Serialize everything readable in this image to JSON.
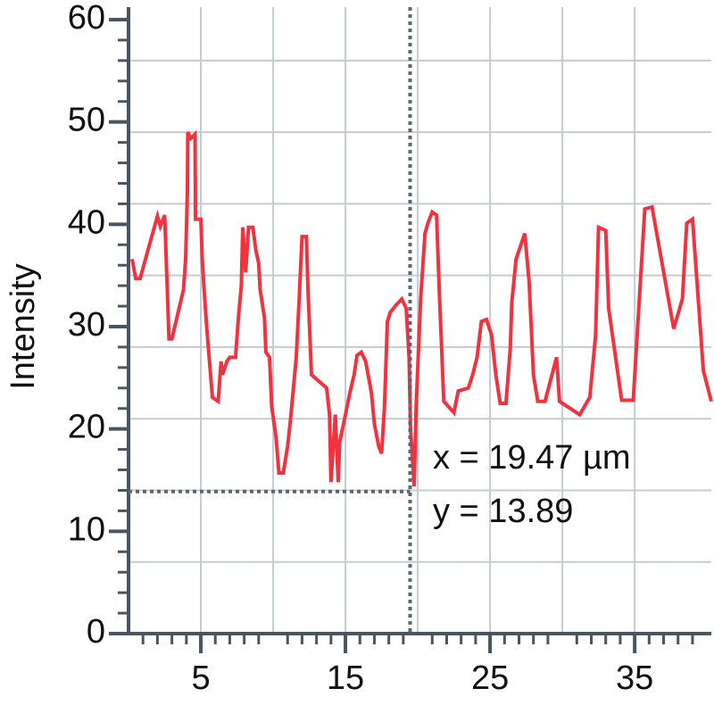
{
  "chart_data": {
    "type": "line",
    "y_label": "Intensity",
    "x": [
      0.25,
      0.5,
      0.8,
      2.0,
      2.2,
      2.5,
      2.8,
      3.0,
      3.8,
      3.95,
      4.07,
      4.1,
      4.3,
      4.6,
      4.63,
      5.0,
      5.1,
      5.25,
      5.4,
      5.6,
      5.8,
      6.2,
      6.4,
      6.5,
      6.8,
      7.0,
      7.4,
      7.6,
      7.8,
      7.9,
      8.1,
      8.3,
      8.6,
      8.8,
      9.0,
      9.1,
      9.4,
      9.5,
      9.75,
      9.9,
      10.2,
      10.4,
      10.7,
      11.0,
      11.2,
      11.6,
      11.8,
      12.0,
      12.3,
      12.4,
      12.65,
      13.7,
      13.9,
      14.0,
      14.3,
      14.5,
      14.6,
      15.0,
      15.3,
      15.6,
      15.8,
      16.1,
      16.4,
      16.8,
      17.0,
      17.3,
      17.5,
      17.7,
      17.9,
      18.1,
      18.5,
      18.9,
      19.2,
      19.4,
      19.5,
      19.75,
      19.9,
      20.2,
      20.5,
      20.7,
      21.0,
      21.3,
      21.5,
      21.8,
      22.5,
      22.8,
      23.5,
      23.8,
      24.1,
      24.4,
      24.75,
      25.1,
      25.4,
      25.7,
      26.1,
      26.4,
      26.5,
      26.8,
      27.4,
      27.7,
      28.0,
      28.3,
      28.8,
      29.6,
      29.8,
      31.2,
      31.9,
      32.3,
      32.5,
      33.0,
      33.2,
      34.1,
      34.9,
      35.7,
      36.2,
      37.7,
      38.3,
      38.6,
      39.0,
      39.75,
      40.3
    ],
    "series": [
      {
        "color": "#f2323e",
        "values": [
          36.6,
          34.7,
          34.7,
          40.8,
          39.8,
          40.9,
          28.8,
          28.8,
          33.6,
          36.6,
          43.2,
          49.0,
          48.4,
          48.8,
          40.5,
          40.5,
          36.6,
          33.1,
          30.1,
          26.6,
          23.1,
          22.7,
          26.6,
          25.3,
          26.6,
          27.0,
          27.0,
          30.9,
          34.0,
          39.7,
          35.3,
          39.7,
          39.7,
          37.5,
          36.2,
          33.6,
          30.9,
          27.5,
          27.0,
          22.2,
          19.2,
          15.7,
          15.7,
          18.3,
          20.9,
          27.0,
          32.7,
          38.8,
          38.8,
          34.0,
          25.3,
          24.0,
          21.4,
          14.8,
          21.4,
          14.8,
          18.7,
          21.4,
          23.5,
          25.3,
          27.2,
          27.5,
          26.6,
          23.5,
          20.5,
          18.3,
          17.6,
          22.2,
          30.5,
          31.4,
          32.1,
          32.7,
          31.8,
          27.0,
          20.1,
          14.4,
          22.7,
          32.7,
          39.1,
          40.1,
          41.2,
          40.9,
          33.1,
          22.7,
          21.6,
          23.7,
          24.0,
          25.3,
          27.0,
          30.5,
          30.7,
          29.2,
          25.3,
          22.5,
          22.5,
          27.9,
          32.3,
          36.6,
          39.1,
          34.4,
          25.3,
          22.7,
          22.7,
          27.0,
          22.7,
          21.4,
          23.1,
          29.2,
          39.7,
          39.4,
          31.8,
          22.8,
          22.8,
          41.5,
          41.7,
          29.8,
          32.7,
          40.1,
          40.5,
          25.7,
          22.7
        ]
      }
    ],
    "xlim": [
      0,
      40.3
    ],
    "ylim": [
      0,
      60
    ],
    "xticks": [
      5,
      15,
      25,
      35
    ],
    "yticks": [
      0,
      10,
      20,
      30,
      40,
      50,
      60
    ],
    "xgrid": [
      5,
      10,
      15,
      20,
      25,
      30,
      35
    ],
    "ygrid": [
      7,
      14,
      21,
      28,
      35,
      42,
      49,
      56
    ],
    "xminorticks": [
      1,
      2,
      3,
      4,
      6,
      7,
      8,
      9,
      11,
      12,
      13,
      14,
      16,
      17,
      18,
      19,
      21,
      22,
      23,
      24,
      26,
      27,
      28,
      29,
      31,
      32,
      33,
      34,
      36,
      37,
      38,
      39
    ],
    "yminorticks": [
      2,
      4,
      6,
      8,
      12,
      14,
      16,
      18,
      22,
      24,
      26,
      28,
      32,
      34,
      36,
      38,
      42,
      44,
      46,
      48,
      52,
      54,
      56,
      58
    ],
    "cursor": {
      "x": 19.47,
      "y": 13.89,
      "x_text": "x = 19.47 µm",
      "y_text": "y = 13.89"
    }
  }
}
